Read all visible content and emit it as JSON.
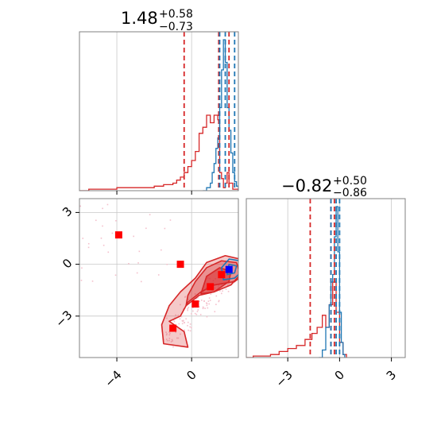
{
  "colors": {
    "red": "#d62728",
    "blue": "#1f77b4",
    "marker_red": "#ff0000",
    "marker_blue": "#0000ff",
    "scatter": "#f4c0cc"
  },
  "chart_data": [
    {
      "panel": "marginal-x",
      "type": "area",
      "title": {
        "median": "1.48",
        "plus": "+0.58",
        "minus": "−0.73"
      },
      "xlim": [
        -6,
        2.5
      ],
      "ylim": [
        0,
        1
      ],
      "grid": true,
      "xticks": [
        -4,
        0
      ],
      "red_quantile_lines": [
        -0.4,
        1.45,
        2.0
      ],
      "blue_quantile_lines": [
        1.5,
        1.8,
        2.3
      ],
      "series": [
        {
          "color": "red",
          "x": [
            -6.0,
            -5.5,
            -5.0,
            -4.5,
            -4.0,
            -3.5,
            -3.0,
            -2.5,
            -2.0,
            -1.5,
            -1.0,
            -0.8,
            -0.6,
            -0.4,
            -0.2,
            0.0,
            0.2,
            0.4,
            0.6,
            0.8,
            1.0,
            1.2,
            1.4,
            1.5,
            1.6,
            1.7,
            1.8,
            1.9,
            2.0,
            2.2,
            2.5
          ],
          "values": [
            0.0,
            0.01,
            0.01,
            0.01,
            0.02,
            0.02,
            0.02,
            0.02,
            0.03,
            0.04,
            0.05,
            0.07,
            0.09,
            0.12,
            0.16,
            0.2,
            0.26,
            0.38,
            0.42,
            0.5,
            0.45,
            0.5,
            0.47,
            0.12,
            0.08,
            0.02,
            0.05,
            0.12,
            0.05,
            0.01,
            0.0
          ]
        },
        {
          "color": "blue",
          "x": [
            0.6,
            0.8,
            1.0,
            1.1,
            1.2,
            1.3,
            1.4,
            1.5,
            1.6,
            1.7,
            1.8,
            1.9,
            2.0,
            2.1,
            2.2,
            2.3,
            2.4,
            2.5
          ],
          "values": [
            0.0,
            0.02,
            0.05,
            0.12,
            0.18,
            0.28,
            0.35,
            0.55,
            0.8,
            1.0,
            0.85,
            0.55,
            0.4,
            0.25,
            0.12,
            0.06,
            0.03,
            0.0
          ]
        }
      ]
    },
    {
      "panel": "joint",
      "type": "scatter",
      "xlim": [
        -6,
        2.5
      ],
      "ylim": [
        -5.4,
        3.8
      ],
      "grid": true,
      "xticks": [
        -4,
        0
      ],
      "yticks": [
        -3,
        0,
        3
      ],
      "red_markers": [
        {
          "x": -3.9,
          "y": 1.7
        },
        {
          "x": -0.6,
          "y": 0.0
        },
        {
          "x": 0.2,
          "y": -2.3
        },
        {
          "x": -1.0,
          "y": -3.7
        },
        {
          "x": 1.0,
          "y": -1.3
        },
        {
          "x": 1.6,
          "y": -0.6
        }
      ],
      "blue_markers": [
        {
          "x": 2.0,
          "y": -0.3
        }
      ]
    },
    {
      "panel": "marginal-y",
      "type": "area",
      "title": {
        "median": "−0.82",
        "plus": "+0.50",
        "minus": "−0.86"
      },
      "xlim": [
        -5.4,
        3.8
      ],
      "ylim": [
        0,
        1
      ],
      "grid": true,
      "xticks": [
        -3,
        0,
        3
      ],
      "red_quantile_lines": [
        -1.7,
        -0.5,
        -0.3
      ],
      "blue_quantile_lines": [
        -0.5,
        -0.2,
        0.0
      ],
      "series": [
        {
          "color": "red",
          "x": [
            -5.4,
            -5.0,
            -4.5,
            -4.0,
            -3.5,
            -3.0,
            -2.5,
            -2.0,
            -1.6,
            -1.3,
            -1.0,
            -0.8,
            -0.6,
            -0.4,
            -0.2,
            0.0,
            0.2,
            0.4
          ],
          "values": [
            0.0,
            0.01,
            0.01,
            0.02,
            0.04,
            0.06,
            0.08,
            0.12,
            0.16,
            0.2,
            0.28,
            0.2,
            0.35,
            0.5,
            0.3,
            0.1,
            0.02,
            0.0
          ]
        },
        {
          "color": "blue",
          "x": [
            -1.2,
            -1.0,
            -0.8,
            -0.6,
            -0.5,
            -0.4,
            -0.3,
            -0.2,
            -0.1,
            0.0,
            0.1,
            0.2,
            0.3
          ],
          "values": [
            0.0,
            0.05,
            0.2,
            0.35,
            0.5,
            0.55,
            0.8,
            1.0,
            0.7,
            0.3,
            0.1,
            0.02,
            0.0
          ]
        }
      ]
    }
  ]
}
